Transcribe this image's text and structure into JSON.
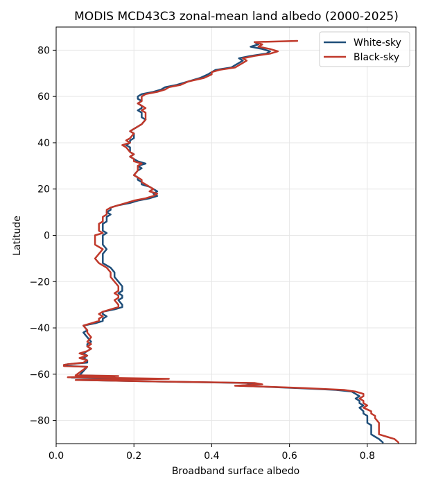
{
  "chart_data": {
    "type": "line",
    "title": "MODIS MCD43C3 zonal-mean land albedo (2000-2025)",
    "xlabel": "Broadband surface albedo",
    "ylabel": "Latitude",
    "xlim": [
      0.0,
      0.925
    ],
    "ylim": [
      -90,
      90
    ],
    "xticks": [
      0.0,
      0.2,
      0.4,
      0.6,
      0.8
    ],
    "xtick_labels": [
      "0.0",
      "0.2",
      "0.4",
      "0.6",
      "0.8"
    ],
    "yticks": [
      -80,
      -60,
      -40,
      -20,
      0,
      20,
      40,
      60,
      80
    ],
    "ytick_labels": [
      "−80",
      "−60",
      "−40",
      "−20",
      "0",
      "20",
      "40",
      "60",
      "80"
    ],
    "grid": true,
    "legend_position": "top-right",
    "series": [
      {
        "name": "White-sky",
        "color": "#1f4e79",
        "points": [
          [
            0.51,
            83.5
          ],
          [
            0.52,
            82.5
          ],
          [
            0.5,
            81.5
          ],
          [
            0.53,
            80.5
          ],
          [
            0.55,
            79.5
          ],
          [
            0.54,
            78.5
          ],
          [
            0.5,
            77.5
          ],
          [
            0.47,
            76.5
          ],
          [
            0.48,
            75.5
          ],
          [
            0.47,
            74.5
          ],
          [
            0.46,
            73.5
          ],
          [
            0.45,
            72.5
          ],
          [
            0.41,
            71.5
          ],
          [
            0.4,
            70.5
          ],
          [
            0.39,
            69.5
          ],
          [
            0.37,
            68
          ],
          [
            0.34,
            66.5
          ],
          [
            0.31,
            65
          ],
          [
            0.28,
            64
          ],
          [
            0.27,
            63
          ],
          [
            0.25,
            62
          ],
          [
            0.22,
            61
          ],
          [
            0.21,
            60
          ],
          [
            0.21,
            59
          ],
          [
            0.22,
            58
          ],
          [
            0.21,
            57
          ],
          [
            0.22,
            56
          ],
          [
            0.22,
            55
          ],
          [
            0.21,
            54
          ],
          [
            0.22,
            53
          ],
          [
            0.22,
            51
          ],
          [
            0.23,
            50
          ],
          [
            0.22,
            48
          ],
          [
            0.21,
            47
          ],
          [
            0.2,
            46
          ],
          [
            0.19,
            45
          ],
          [
            0.2,
            44
          ],
          [
            0.2,
            42
          ],
          [
            0.19,
            41
          ],
          [
            0.19,
            40
          ],
          [
            0.18,
            39
          ],
          [
            0.19,
            38
          ],
          [
            0.19,
            36
          ],
          [
            0.2,
            35
          ],
          [
            0.19,
            34
          ],
          [
            0.2,
            33
          ],
          [
            0.21,
            32
          ],
          [
            0.23,
            31
          ],
          [
            0.21,
            30
          ],
          [
            0.22,
            29
          ],
          [
            0.21,
            28
          ],
          [
            0.2,
            26
          ],
          [
            0.21,
            25
          ],
          [
            0.21,
            24
          ],
          [
            0.22,
            23
          ],
          [
            0.22,
            22
          ],
          [
            0.24,
            21
          ],
          [
            0.25,
            20
          ],
          [
            0.26,
            19
          ],
          [
            0.25,
            18
          ],
          [
            0.26,
            17
          ],
          [
            0.24,
            16
          ],
          [
            0.21,
            15
          ],
          [
            0.19,
            14
          ],
          [
            0.16,
            13
          ],
          [
            0.14,
            12
          ],
          [
            0.14,
            11
          ],
          [
            0.13,
            10
          ],
          [
            0.14,
            9
          ],
          [
            0.13,
            8
          ],
          [
            0.13,
            6
          ],
          [
            0.12,
            5
          ],
          [
            0.12,
            4
          ],
          [
            0.12,
            2
          ],
          [
            0.13,
            1
          ],
          [
            0.12,
            0
          ],
          [
            0.12,
            -2
          ],
          [
            0.12,
            -4
          ],
          [
            0.13,
            -6
          ],
          [
            0.12,
            -8
          ],
          [
            0.12,
            -10
          ],
          [
            0.12,
            -12
          ],
          [
            0.14,
            -14
          ],
          [
            0.15,
            -16
          ],
          [
            0.15,
            -18
          ],
          [
            0.16,
            -20
          ],
          [
            0.17,
            -22
          ],
          [
            0.17,
            -24
          ],
          [
            0.16,
            -25
          ],
          [
            0.17,
            -26
          ],
          [
            0.17,
            -27
          ],
          [
            0.16,
            -28
          ],
          [
            0.17,
            -30
          ],
          [
            0.17,
            -31
          ],
          [
            0.15,
            -32
          ],
          [
            0.12,
            -33
          ],
          [
            0.12,
            -34
          ],
          [
            0.13,
            -35
          ],
          [
            0.12,
            -36
          ],
          [
            0.12,
            -37
          ],
          [
            0.1,
            -38
          ],
          [
            0.07,
            -39
          ],
          [
            0.08,
            -41
          ],
          [
            0.07,
            -42
          ],
          [
            0.08,
            -44
          ],
          [
            0.09,
            -46
          ],
          [
            0.08,
            -47
          ],
          [
            0.08,
            -48
          ],
          [
            0.09,
            -49
          ],
          [
            0.08,
            -50
          ],
          [
            0.07,
            -51
          ],
          [
            0.08,
            -52
          ],
          [
            0.07,
            -53
          ],
          [
            0.08,
            -54
          ],
          [
            0.08,
            -55
          ],
          [
            0.03,
            -55.7
          ],
          [
            0.02,
            -56
          ],
          [
            0.03,
            -56.5
          ],
          [
            0.08,
            -56.8
          ],
          [
            0.06,
            -60.5
          ],
          [
            0.15,
            -61
          ],
          [
            0.04,
            -61.5
          ],
          [
            0.23,
            -62
          ],
          [
            0.06,
            -62.5
          ],
          [
            0.27,
            -63.2
          ],
          [
            0.49,
            -63.8
          ],
          [
            0.51,
            -64.4
          ],
          [
            0.47,
            -65
          ],
          [
            0.55,
            -65.5
          ],
          [
            0.62,
            -66
          ],
          [
            0.72,
            -66.8
          ],
          [
            0.76,
            -67.5
          ],
          [
            0.77,
            -68.5
          ],
          [
            0.78,
            -69.5
          ],
          [
            0.77,
            -70.5
          ],
          [
            0.78,
            -71.5
          ],
          [
            0.78,
            -72.5
          ],
          [
            0.79,
            -73.5
          ],
          [
            0.78,
            -74.5
          ],
          [
            0.79,
            -76
          ],
          [
            0.79,
            -77
          ],
          [
            0.8,
            -78
          ],
          [
            0.8,
            -79
          ],
          [
            0.8,
            -81
          ],
          [
            0.81,
            -82
          ],
          [
            0.81,
            -84
          ],
          [
            0.81,
            -86
          ],
          [
            0.82,
            -87
          ],
          [
            0.83,
            -88
          ],
          [
            0.84,
            -89.5
          ]
        ]
      },
      {
        "name": "Black-sky",
        "color": "#c0392b",
        "points": [
          [
            0.62,
            84
          ],
          [
            0.51,
            83.5
          ],
          [
            0.53,
            82.5
          ],
          [
            0.52,
            81.5
          ],
          [
            0.55,
            80.5
          ],
          [
            0.57,
            79.5
          ],
          [
            0.55,
            78.5
          ],
          [
            0.51,
            77.5
          ],
          [
            0.48,
            76.5
          ],
          [
            0.49,
            75.5
          ],
          [
            0.48,
            74.5
          ],
          [
            0.47,
            73.5
          ],
          [
            0.46,
            72.5
          ],
          [
            0.42,
            71.5
          ],
          [
            0.4,
            70.5
          ],
          [
            0.4,
            69.5
          ],
          [
            0.38,
            68
          ],
          [
            0.34,
            66.5
          ],
          [
            0.32,
            65
          ],
          [
            0.29,
            64
          ],
          [
            0.28,
            63
          ],
          [
            0.26,
            62
          ],
          [
            0.23,
            61
          ],
          [
            0.22,
            60
          ],
          [
            0.22,
            59
          ],
          [
            0.22,
            58
          ],
          [
            0.21,
            57
          ],
          [
            0.22,
            56
          ],
          [
            0.23,
            55
          ],
          [
            0.22,
            54
          ],
          [
            0.23,
            53
          ],
          [
            0.23,
            51
          ],
          [
            0.23,
            50
          ],
          [
            0.22,
            48
          ],
          [
            0.21,
            47
          ],
          [
            0.2,
            46
          ],
          [
            0.19,
            45
          ],
          [
            0.2,
            44
          ],
          [
            0.19,
            42
          ],
          [
            0.18,
            41
          ],
          [
            0.19,
            40
          ],
          [
            0.17,
            39
          ],
          [
            0.18,
            38
          ],
          [
            0.19,
            36
          ],
          [
            0.2,
            35
          ],
          [
            0.19,
            34
          ],
          [
            0.2,
            33
          ],
          [
            0.2,
            32
          ],
          [
            0.22,
            31
          ],
          [
            0.21,
            30
          ],
          [
            0.21,
            29
          ],
          [
            0.21,
            28
          ],
          [
            0.2,
            26
          ],
          [
            0.21,
            25
          ],
          [
            0.22,
            24
          ],
          [
            0.22,
            23
          ],
          [
            0.23,
            22
          ],
          [
            0.24,
            21
          ],
          [
            0.25,
            20
          ],
          [
            0.24,
            19
          ],
          [
            0.26,
            18
          ],
          [
            0.25,
            17
          ],
          [
            0.23,
            16
          ],
          [
            0.2,
            15
          ],
          [
            0.18,
            14
          ],
          [
            0.16,
            13
          ],
          [
            0.14,
            12
          ],
          [
            0.13,
            11
          ],
          [
            0.13,
            10
          ],
          [
            0.13,
            9
          ],
          [
            0.12,
            8
          ],
          [
            0.12,
            6
          ],
          [
            0.11,
            5
          ],
          [
            0.11,
            4
          ],
          [
            0.11,
            2
          ],
          [
            0.12,
            1
          ],
          [
            0.1,
            0
          ],
          [
            0.1,
            -2
          ],
          [
            0.1,
            -4
          ],
          [
            0.12,
            -6
          ],
          [
            0.11,
            -8
          ],
          [
            0.1,
            -10
          ],
          [
            0.11,
            -12
          ],
          [
            0.13,
            -14
          ],
          [
            0.14,
            -16
          ],
          [
            0.14,
            -18
          ],
          [
            0.15,
            -20
          ],
          [
            0.16,
            -22
          ],
          [
            0.16,
            -24
          ],
          [
            0.15,
            -25
          ],
          [
            0.16,
            -26
          ],
          [
            0.16,
            -27
          ],
          [
            0.15,
            -28
          ],
          [
            0.16,
            -30
          ],
          [
            0.16,
            -31
          ],
          [
            0.14,
            -32
          ],
          [
            0.12,
            -33
          ],
          [
            0.11,
            -34
          ],
          [
            0.12,
            -35
          ],
          [
            0.11,
            -36
          ],
          [
            0.11,
            -37
          ],
          [
            0.09,
            -38
          ],
          [
            0.07,
            -39
          ],
          [
            0.08,
            -41
          ],
          [
            0.08,
            -42
          ],
          [
            0.09,
            -44
          ],
          [
            0.08,
            -46
          ],
          [
            0.09,
            -47
          ],
          [
            0.08,
            -48
          ],
          [
            0.09,
            -49
          ],
          [
            0.08,
            -50
          ],
          [
            0.06,
            -51
          ],
          [
            0.08,
            -52
          ],
          [
            0.06,
            -53
          ],
          [
            0.08,
            -54
          ],
          [
            0.07,
            -55
          ],
          [
            0.03,
            -55.7
          ],
          [
            0.02,
            -56
          ],
          [
            0.02,
            -56.5
          ],
          [
            0.08,
            -56.8
          ],
          [
            0.05,
            -60.5
          ],
          [
            0.16,
            -60.8
          ],
          [
            0.03,
            -61.3
          ],
          [
            0.29,
            -62
          ],
          [
            0.05,
            -62.5
          ],
          [
            0.28,
            -63.2
          ],
          [
            0.51,
            -63.8
          ],
          [
            0.53,
            -64.4
          ],
          [
            0.46,
            -65
          ],
          [
            0.56,
            -65.5
          ],
          [
            0.64,
            -66
          ],
          [
            0.74,
            -66.8
          ],
          [
            0.77,
            -67.5
          ],
          [
            0.79,
            -68.5
          ],
          [
            0.79,
            -69.5
          ],
          [
            0.78,
            -70.5
          ],
          [
            0.79,
            -71.5
          ],
          [
            0.79,
            -72.5
          ],
          [
            0.8,
            -73.5
          ],
          [
            0.79,
            -74.5
          ],
          [
            0.81,
            -76
          ],
          [
            0.81,
            -77
          ],
          [
            0.82,
            -78
          ],
          [
            0.82,
            -79
          ],
          [
            0.83,
            -81
          ],
          [
            0.83,
            -82
          ],
          [
            0.83,
            -84
          ],
          [
            0.83,
            -86
          ],
          [
            0.85,
            -87
          ],
          [
            0.87,
            -88
          ],
          [
            0.88,
            -89.5
          ]
        ]
      }
    ]
  }
}
